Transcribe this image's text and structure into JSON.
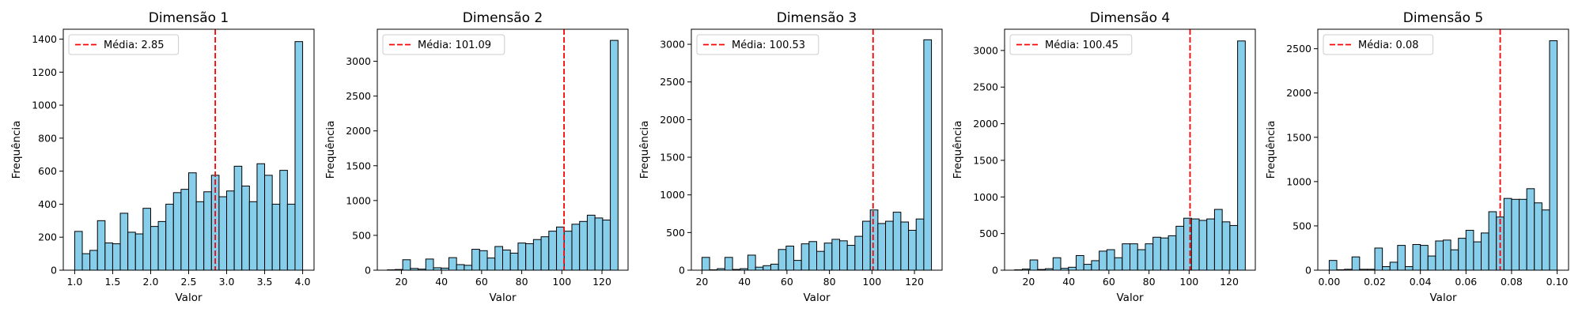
{
  "chart_data": [
    {
      "type": "bar",
      "title": "Dimensão 1",
      "xlabel": "Valor",
      "ylabel": "Frequência",
      "xlim": [
        0.85,
        4.15
      ],
      "ylim": [
        0,
        1460
      ],
      "xticks": [
        1.0,
        1.5,
        2.0,
        2.5,
        3.0,
        3.5,
        4.0
      ],
      "xtick_labels": [
        "1.0",
        "1.5",
        "2.0",
        "2.5",
        "3.0",
        "3.5",
        "4.0"
      ],
      "yticks": [
        0,
        200,
        400,
        600,
        800,
        1000,
        1200,
        1400
      ],
      "ytick_labels": [
        "0",
        "200",
        "400",
        "600",
        "800",
        "1000",
        "1200",
        "1400"
      ],
      "bin_start": 1.0,
      "bin_end": 4.0,
      "values": [
        235,
        100,
        120,
        300,
        165,
        160,
        345,
        230,
        220,
        375,
        265,
        295,
        400,
        470,
        490,
        590,
        415,
        475,
        575,
        445,
        480,
        630,
        510,
        415,
        645,
        575,
        400,
        605,
        400,
        1385
      ],
      "mean": 2.85,
      "legend": "Média: 2.85",
      "legend_position": "upper left",
      "bar_color": "#87ceeb",
      "mean_color": "#ff0000"
    },
    {
      "type": "bar",
      "title": "Dimensão 2",
      "xlabel": "Valor",
      "ylabel": "Frequência",
      "xlim": [
        8,
        133
      ],
      "ylim": [
        0,
        3460
      ],
      "xticks": [
        20,
        40,
        60,
        80,
        100,
        120
      ],
      "xtick_labels": [
        "20",
        "40",
        "60",
        "80",
        "100",
        "120"
      ],
      "yticks": [
        0,
        500,
        1000,
        1500,
        2000,
        2500,
        3000
      ],
      "ytick_labels": [
        "0",
        "500",
        "1000",
        "1500",
        "2000",
        "2500",
        "3000"
      ],
      "bin_start": 13,
      "bin_end": 128,
      "values": [
        5,
        10,
        150,
        25,
        15,
        160,
        35,
        30,
        180,
        80,
        70,
        300,
        280,
        175,
        340,
        290,
        245,
        390,
        380,
        440,
        480,
        560,
        620,
        560,
        660,
        700,
        790,
        750,
        720,
        3300
      ],
      "mean": 101.09,
      "legend": "Média: 101.09",
      "legend_position": "upper left",
      "bar_color": "#87ceeb",
      "mean_color": "#ff0000"
    },
    {
      "type": "bar",
      "title": "Dimensão 3",
      "xlabel": "Valor",
      "ylabel": "Frequência",
      "xlim": [
        15,
        133
      ],
      "ylim": [
        0,
        3200
      ],
      "xticks": [
        20,
        40,
        60,
        80,
        100,
        120
      ],
      "xtick_labels": [
        "20",
        "40",
        "60",
        "80",
        "100",
        "120"
      ],
      "yticks": [
        0,
        500,
        1000,
        1500,
        2000,
        2500,
        3000
      ],
      "ytick_labels": [
        "0",
        "500",
        "1000",
        "1500",
        "2000",
        "2500",
        "3000"
      ],
      "bin_start": 20,
      "bin_end": 128,
      "values": [
        170,
        5,
        20,
        170,
        10,
        20,
        200,
        40,
        60,
        80,
        275,
        320,
        130,
        350,
        380,
        250,
        360,
        410,
        390,
        330,
        450,
        650,
        800,
        620,
        650,
        770,
        640,
        530,
        680,
        3060
      ],
      "mean": 100.53,
      "legend": "Média: 100.53",
      "legend_position": "upper left",
      "bar_color": "#87ceeb",
      "mean_color": "#ff0000"
    },
    {
      "type": "bar",
      "title": "Dimensão 4",
      "xlabel": "Valor",
      "ylabel": "Frequência",
      "xlim": [
        8,
        133
      ],
      "ylim": [
        0,
        3290
      ],
      "xticks": [
        20,
        40,
        60,
        80,
        100,
        120
      ],
      "xtick_labels": [
        "20",
        "40",
        "60",
        "80",
        "100",
        "120"
      ],
      "yticks": [
        0,
        500,
        1000,
        1500,
        2000,
        2500,
        3000
      ],
      "ytick_labels": [
        "0",
        "500",
        "1000",
        "1500",
        "2000",
        "2500",
        "3000"
      ],
      "bin_start": 13,
      "bin_end": 128,
      "values": [
        5,
        15,
        140,
        10,
        20,
        170,
        25,
        40,
        200,
        80,
        130,
        260,
        280,
        170,
        360,
        360,
        280,
        360,
        450,
        440,
        470,
        600,
        710,
        700,
        680,
        700,
        830,
        660,
        610,
        3130
      ],
      "mean": 100.45,
      "legend": "Média: 100.45",
      "legend_position": "upper left",
      "bar_color": "#87ceeb",
      "mean_color": "#ff0000"
    },
    {
      "type": "bar",
      "title": "Dimensão 5",
      "xlabel": "Valor",
      "ylabel": "Frequência",
      "xlim": [
        -0.005,
        0.105
      ],
      "ylim": [
        0,
        2720
      ],
      "xticks": [
        0.0,
        0.02,
        0.04,
        0.06,
        0.08,
        0.1
      ],
      "xtick_labels": [
        "0.00",
        "0.02",
        "0.04",
        "0.06",
        "0.08",
        "0.10"
      ],
      "yticks": [
        0,
        500,
        1000,
        1500,
        2000,
        2500
      ],
      "ytick_labels": [
        "0",
        "500",
        "1000",
        "1500",
        "2000",
        "2500"
      ],
      "bin_start": 0.0,
      "bin_end": 0.1,
      "values": [
        110,
        5,
        10,
        150,
        10,
        10,
        250,
        40,
        90,
        280,
        40,
        290,
        280,
        160,
        330,
        340,
        230,
        360,
        450,
        320,
        420,
        660,
        600,
        810,
        800,
        800,
        920,
        760,
        680,
        2590
      ],
      "mean": 0.075,
      "legend": "Média: 0.08",
      "legend_position": "upper left",
      "bar_color": "#87ceeb",
      "mean_color": "#ff0000"
    }
  ]
}
